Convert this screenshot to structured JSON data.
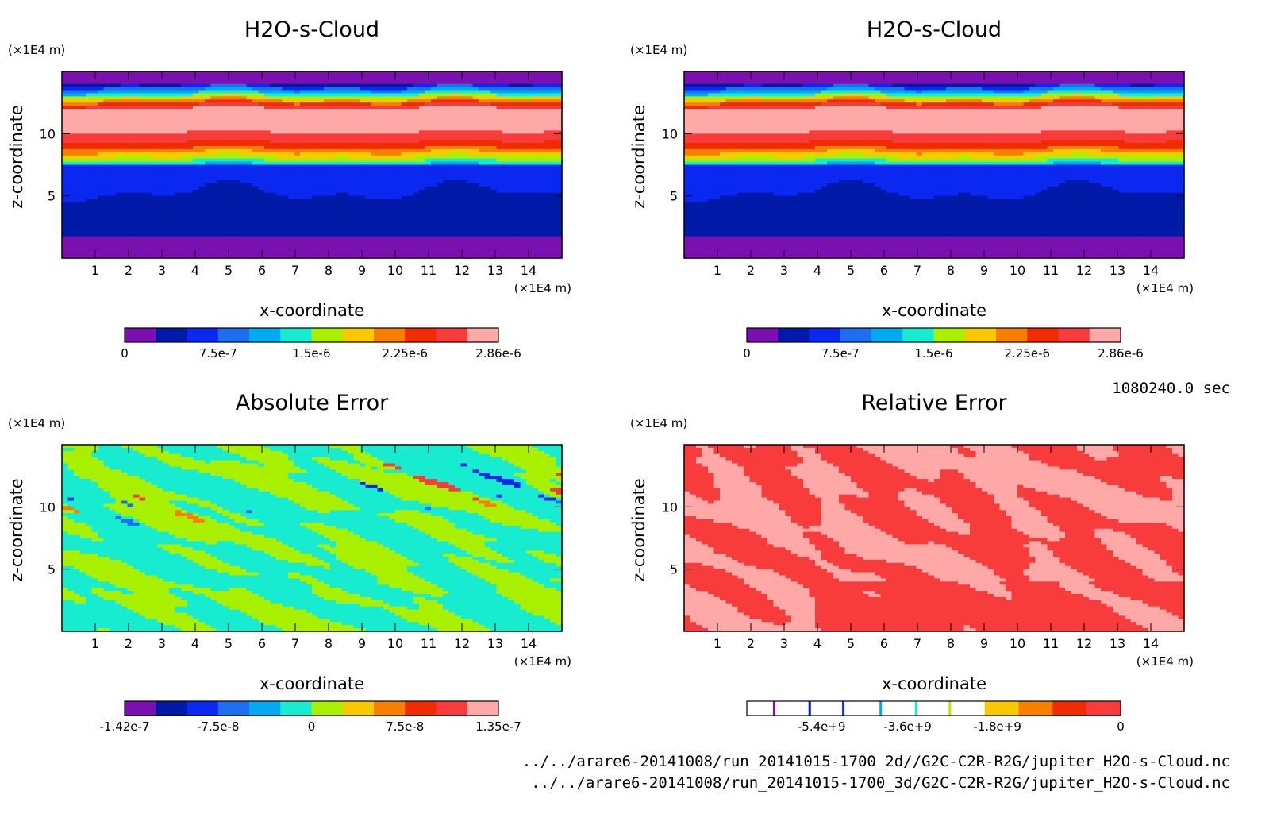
{
  "panels": [
    {
      "title": "H2O-s-Cloud",
      "ylabel": "z-coordinate",
      "xlabel": "x-coordinate",
      "unit_y": "(×1E4 m)",
      "unit_x": "(×1E4 m)",
      "x_ticks": [
        "1",
        "2",
        "3",
        "4",
        "5",
        "6",
        "7",
        "8",
        "9",
        "10",
        "11",
        "12",
        "13",
        "14"
      ],
      "y_ticks": [
        "5",
        "10"
      ],
      "colorbar_labels": [
        "0",
        "7.5e-7",
        "1.5e-6",
        "2.25e-6",
        "2.86e-6"
      ]
    },
    {
      "title": "H2O-s-Cloud",
      "ylabel": "z-coordinate",
      "xlabel": "x-coordinate",
      "unit_y": "(×1E4 m)",
      "unit_x": "(×1E4 m)",
      "x_ticks": [
        "1",
        "2",
        "3",
        "4",
        "5",
        "6",
        "7",
        "8",
        "9",
        "10",
        "11",
        "12",
        "13",
        "14"
      ],
      "y_ticks": [
        "5",
        "10"
      ],
      "colorbar_labels": [
        "0",
        "7.5e-7",
        "1.5e-6",
        "2.25e-6",
        "2.86e-6"
      ]
    },
    {
      "title": "Absolute Error",
      "ylabel": "z-coordinate",
      "xlabel": "x-coordinate",
      "unit_y": "(×1E4 m)",
      "unit_x": "(×1E4 m)",
      "x_ticks": [
        "1",
        "2",
        "3",
        "4",
        "5",
        "6",
        "7",
        "8",
        "9",
        "10",
        "11",
        "12",
        "13",
        "14"
      ],
      "y_ticks": [
        "5",
        "10"
      ],
      "colorbar_labels": [
        "-1.42e-7",
        "-7.5e-8",
        "0",
        "7.5e-8",
        "1.35e-7"
      ]
    },
    {
      "title": "Relative Error",
      "ylabel": "z-coordinate",
      "xlabel": "x-coordinate",
      "unit_y": "(×1E4 m)",
      "unit_x": "(×1E4 m)",
      "x_ticks": [
        "1",
        "2",
        "3",
        "4",
        "5",
        "6",
        "7",
        "8",
        "9",
        "10",
        "11",
        "12",
        "13",
        "14"
      ],
      "y_ticks": [
        "5",
        "10"
      ],
      "colorbar_labels": [
        "-5.4e+9",
        "-3.6e+9",
        "-1.8e+9",
        "0"
      ]
    }
  ],
  "time_label": "1080240.0 sec",
  "file_paths": [
    "../../arare6-20141008/run_20141015-1700_2d//G2C-C2R-R2G/jupiter_H2O-s-Cloud.nc",
    "../../arare6-20141008/run_20141015-1700_3d/G2C-C2R-R2G/jupiter_H2O-s-Cloud.nc"
  ],
  "colors": {
    "palette": [
      "#7a10b0",
      "#001aa8",
      "#0a28f0",
      "#1e6ef0",
      "#00aaf0",
      "#18ecd0",
      "#a8f000",
      "#f8c800",
      "#f88000",
      "#f02c00",
      "#f83c3c",
      "#ffa8a8"
    ],
    "relative_error_palette": [
      "#ffffff",
      "#ffffff",
      "#ffffff",
      "#ffffff",
      "#ffffff",
      "#ffffff",
      "#ffffff",
      "#f8c800",
      "#f88000",
      "#f02c00",
      "#f83c3c"
    ]
  },
  "chart_data": [
    {
      "type": "heatmap",
      "title": "H2O-s-Cloud",
      "xlabel": "x-coordinate",
      "ylabel": "z-coordinate",
      "xlim": [
        0,
        15
      ],
      "ylim": [
        0,
        15
      ],
      "x_unit": "×1E4 m",
      "y_unit": "×1E4 m",
      "colorbar": {
        "min": 0,
        "max": 2.86e-06,
        "labels": [
          "0",
          "7.5e-7",
          "1.5e-6",
          "2.25e-6",
          "2.86e-6"
        ]
      },
      "z_profile": [
        {
          "z": 0.5,
          "level": 0
        },
        {
          "z": 2,
          "level": 1
        },
        {
          "z": 5,
          "level": 1
        },
        {
          "z": 7,
          "level": 3
        },
        {
          "z": 8,
          "level": 6
        },
        {
          "z": 9,
          "level": 9
        },
        {
          "z": 10.5,
          "level": 11
        },
        {
          "z": 12,
          "level": 11
        },
        {
          "z": 13,
          "level": 6
        },
        {
          "z": 14,
          "level": 1
        },
        {
          "z": 14.6,
          "level": 0
        }
      ]
    },
    {
      "type": "heatmap",
      "title": "H2O-s-Cloud",
      "xlabel": "x-coordinate",
      "ylabel": "z-coordinate",
      "xlim": [
        0,
        15
      ],
      "ylim": [
        0,
        15
      ],
      "x_unit": "×1E4 m",
      "y_unit": "×1E4 m",
      "colorbar": {
        "min": 0,
        "max": 2.86e-06,
        "labels": [
          "0",
          "7.5e-7",
          "1.5e-6",
          "2.25e-6",
          "2.86e-6"
        ]
      },
      "z_profile": [
        {
          "z": 0.5,
          "level": 0
        },
        {
          "z": 2,
          "level": 1
        },
        {
          "z": 5,
          "level": 1
        },
        {
          "z": 7,
          "level": 3
        },
        {
          "z": 8,
          "level": 6
        },
        {
          "z": 9,
          "level": 9
        },
        {
          "z": 10.5,
          "level": 11
        },
        {
          "z": 12,
          "level": 11
        },
        {
          "z": 13,
          "level": 6
        },
        {
          "z": 14,
          "level": 1
        },
        {
          "z": 14.6,
          "level": 0
        }
      ]
    },
    {
      "type": "heatmap",
      "title": "Absolute Error",
      "xlabel": "x-coordinate",
      "ylabel": "z-coordinate",
      "xlim": [
        0,
        15
      ],
      "ylim": [
        0,
        15
      ],
      "x_unit": "×1E4 m",
      "y_unit": "×1E4 m",
      "colorbar": {
        "min": -1.42e-07,
        "max": 1.35e-07,
        "labels": [
          "-1.42e-7",
          "-7.5e-8",
          "0",
          "7.5e-8",
          "1.35e-7"
        ]
      },
      "dominant_levels": [
        5,
        6
      ]
    },
    {
      "type": "heatmap",
      "title": "Relative Error",
      "xlabel": "x-coordinate",
      "ylabel": "z-coordinate",
      "xlim": [
        0,
        15
      ],
      "ylim": [
        0,
        15
      ],
      "x_unit": "×1E4 m",
      "y_unit": "×1E4 m",
      "colorbar": {
        "min": -6500000000.0,
        "max": 0,
        "labels": [
          "-5.4e+9",
          "-3.6e+9",
          "-1.8e+9",
          "0"
        ]
      },
      "dominant_levels": [
        9,
        10
      ]
    }
  ]
}
